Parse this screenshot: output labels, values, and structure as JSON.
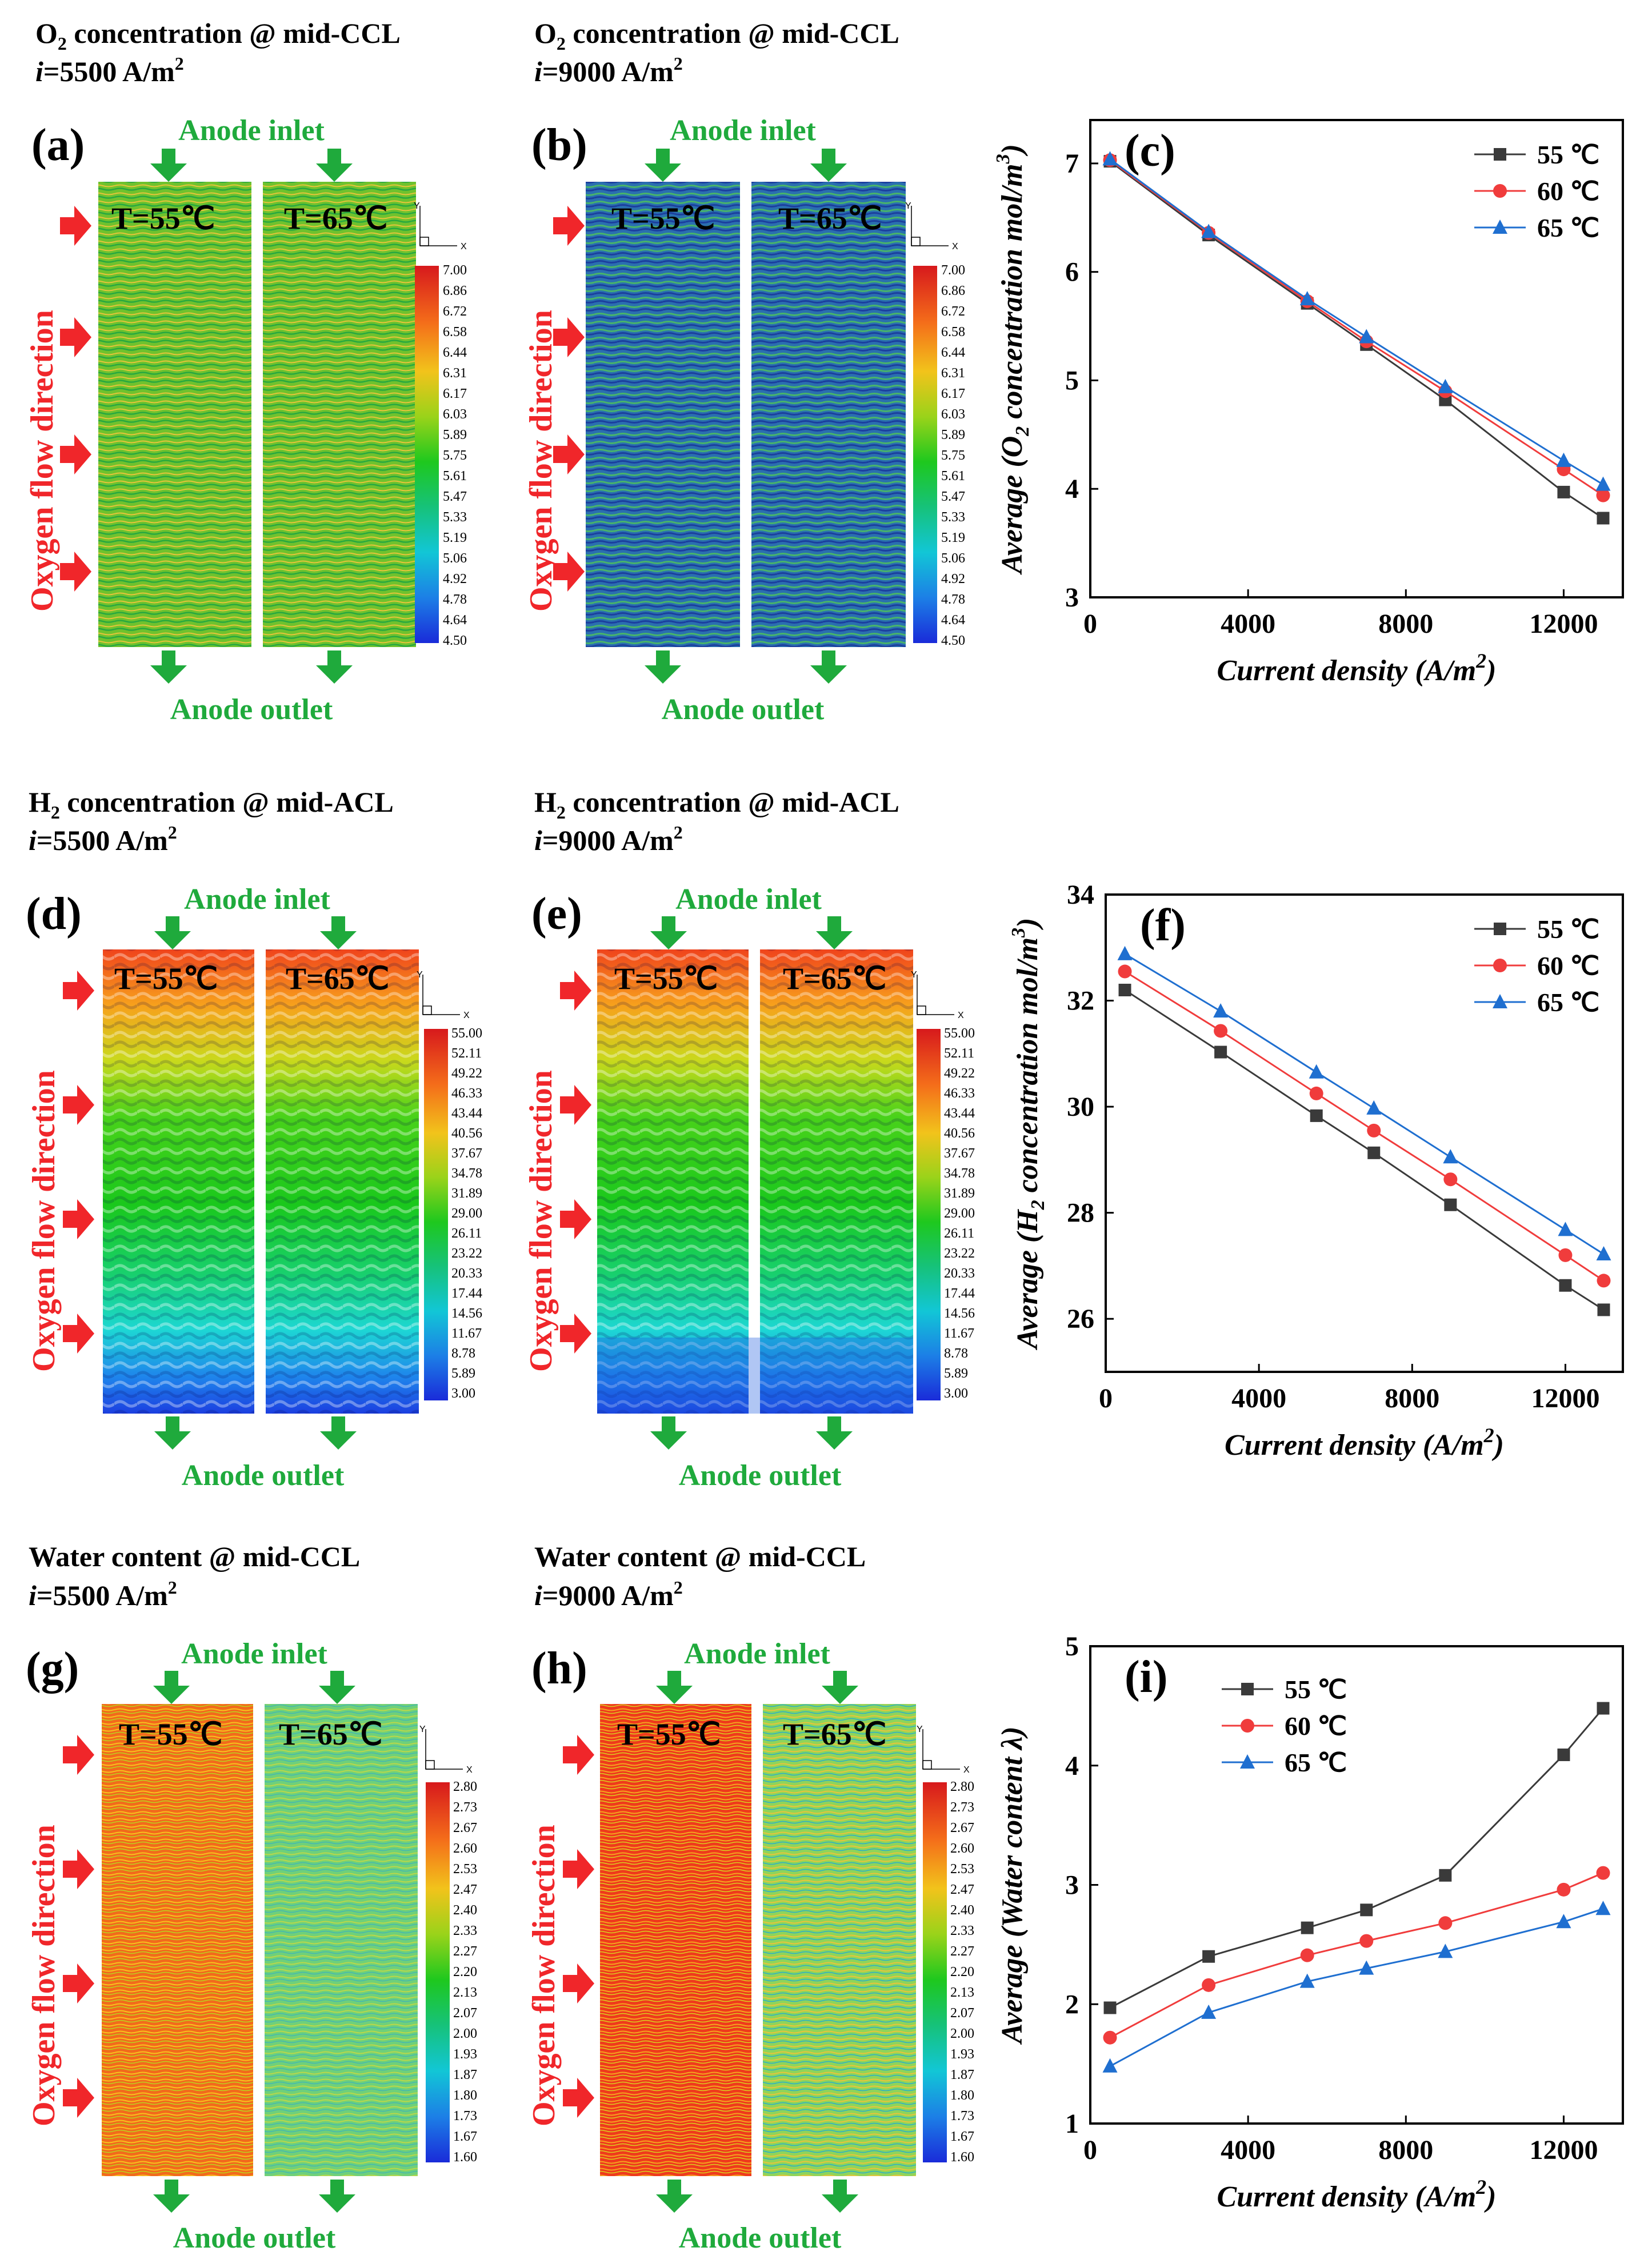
{
  "colors": {
    "s55": "#3a3a3a",
    "s60": "#f03c3c",
    "s65": "#1f6fd0",
    "arrow_green": "#1faa3c",
    "arrow_red": "#f0262a"
  },
  "rows": [
    {
      "panels": [
        {
          "letter": "(a)",
          "title_species": "O",
          "title_sub": "2",
          "title_rest": " concentration @ mid-CCL",
          "current": "=5500 A/m",
          "pattern": "o2_5500"
        },
        {
          "letter": "(b)",
          "title_species": "O",
          "title_sub": "2",
          "title_rest": " concentration @ mid-CCL",
          "current": "=9000 A/m",
          "pattern": "o2_9000"
        }
      ],
      "colorbar": [
        "7.00",
        "6.86",
        "6.72",
        "6.58",
        "6.44",
        "6.31",
        "6.17",
        "6.03",
        "5.89",
        "5.75",
        "5.61",
        "5.47",
        "5.33",
        "5.19",
        "5.06",
        "4.92",
        "4.78",
        "4.64",
        "4.50"
      ]
    },
    {
      "panels": [
        {
          "letter": "(d)",
          "title_species": "H",
          "title_sub": "2",
          "title_rest": " concentration @ mid-ACL",
          "current": "=5500 A/m",
          "pattern": "h2_5500"
        },
        {
          "letter": "(e)",
          "title_species": "H",
          "title_sub": "2",
          "title_rest": " concentration @ mid-ACL",
          "current": "=9000 A/m",
          "pattern": "h2_9000"
        }
      ],
      "colorbar": [
        "55.00",
        "52.11",
        "49.22",
        "46.33",
        "43.44",
        "40.56",
        "37.67",
        "34.78",
        "31.89",
        "29.00",
        "26.11",
        "23.22",
        "20.33",
        "17.44",
        "14.56",
        "11.67",
        "8.78",
        "5.89",
        "3.00"
      ]
    },
    {
      "panels": [
        {
          "letter": "(g)",
          "title_species": "Water content",
          "title_sub": "",
          "title_rest": " @ mid-CCL",
          "current": "=5500 A/m",
          "pattern": "w_5500"
        },
        {
          "letter": "(h)",
          "title_species": "Water content",
          "title_sub": "",
          "title_rest": " @ mid-CCL",
          "current": "=9000 A/m",
          "pattern": "w_9000"
        }
      ],
      "colorbar": [
        "2.80",
        "2.73",
        "2.67",
        "2.60",
        "2.53",
        "2.47",
        "2.40",
        "2.33",
        "2.27",
        "2.20",
        "2.13",
        "2.07",
        "2.00",
        "1.93",
        "1.87",
        "1.80",
        "1.73",
        "1.67",
        "1.60"
      ]
    }
  ],
  "common": {
    "i_letter": "i",
    "sq": "2",
    "anode_inlet": "Anode inlet",
    "anode_outlet": "Anode outlet",
    "oxygen_flow": "Oxygen flow direction",
    "t55": "T=55℃",
    "t65": "T=65℃",
    "axis_y": "Y",
    "axis_x": "X"
  },
  "chart_data": [
    {
      "type": "line",
      "panel": "(c)",
      "x": [
        500,
        3000,
        5500,
        7000,
        9000,
        12000,
        13000
      ],
      "series": [
        {
          "name": "55 ℃",
          "values": [
            7.02,
            6.34,
            5.71,
            5.33,
            4.82,
            3.97,
            3.73
          ]
        },
        {
          "name": "60 ℃",
          "values": [
            7.03,
            6.36,
            5.73,
            5.36,
            4.9,
            4.18,
            3.94
          ]
        },
        {
          "name": "65 ℃",
          "values": [
            7.04,
            6.37,
            5.75,
            5.4,
            4.94,
            4.26,
            4.04
          ]
        }
      ],
      "xlabel_main": "Current density (",
      "xlabel_unit": "A/m",
      "xlabel_sup": "2",
      "xlabel_end": ")",
      "ylabel_main": "Average (",
      "ylabel_species": "O",
      "ylabel_sub": "2",
      "ylabel_rest": " concentration mol/m",
      "ylabel_sup": "3",
      "ylabel_end": ")",
      "xlim": [
        0,
        13500
      ],
      "ylim": [
        3,
        7.4
      ],
      "xticks": [
        0,
        4000,
        8000,
        12000
      ],
      "yticks": [
        3,
        4,
        5,
        6,
        7
      ],
      "legend": "top-right"
    },
    {
      "type": "line",
      "panel": "(f)",
      "x": [
        500,
        3000,
        5500,
        7000,
        9000,
        12000,
        13000
      ],
      "series": [
        {
          "name": "55 ℃",
          "values": [
            32.2,
            31.03,
            29.83,
            29.13,
            28.15,
            26.63,
            26.17
          ]
        },
        {
          "name": "60 ℃",
          "values": [
            32.55,
            31.43,
            30.25,
            29.55,
            28.63,
            27.2,
            26.72
          ]
        },
        {
          "name": "65 ℃",
          "values": [
            32.88,
            31.8,
            30.65,
            29.97,
            29.05,
            27.68,
            27.22
          ]
        }
      ],
      "xlabel_main": "Current density (",
      "xlabel_unit": "A/m",
      "xlabel_sup": "2",
      "xlabel_end": ")",
      "ylabel_main": "Average (",
      "ylabel_species": "H",
      "ylabel_sub": "2",
      "ylabel_rest": " concentration mol/m",
      "ylabel_sup": "3",
      "ylabel_end": ")",
      "xlim": [
        0,
        13500
      ],
      "ylim": [
        25,
        34
      ],
      "xticks": [
        0,
        4000,
        8000,
        12000
      ],
      "yticks": [
        26,
        28,
        30,
        32,
        34
      ],
      "legend": "top-right"
    },
    {
      "type": "line",
      "panel": "(i)",
      "x": [
        500,
        3000,
        5500,
        7000,
        9000,
        12000,
        13000
      ],
      "series": [
        {
          "name": "55 ℃",
          "values": [
            1.97,
            2.4,
            2.64,
            2.79,
            3.08,
            4.09,
            4.48
          ]
        },
        {
          "name": "60 ℃",
          "values": [
            1.72,
            2.16,
            2.41,
            2.53,
            2.68,
            2.96,
            3.1
          ]
        },
        {
          "name": "65 ℃",
          "values": [
            1.48,
            1.93,
            2.19,
            2.3,
            2.44,
            2.69,
            2.8
          ]
        }
      ],
      "xlabel_main": "Current density (",
      "xlabel_unit": "A/m",
      "xlabel_sup": "2",
      "xlabel_end": ")",
      "ylabel_main": "Average (",
      "ylabel_species": "Water content",
      "ylabel_sub": "",
      "ylabel_rest": "  λ",
      "ylabel_sup": "",
      "ylabel_end": ")",
      "xlim": [
        0,
        13500
      ],
      "ylim": [
        1,
        5
      ],
      "xticks": [
        0,
        4000,
        8000,
        12000
      ],
      "yticks": [
        1,
        2,
        3,
        4,
        5
      ],
      "legend": "top-left"
    }
  ]
}
